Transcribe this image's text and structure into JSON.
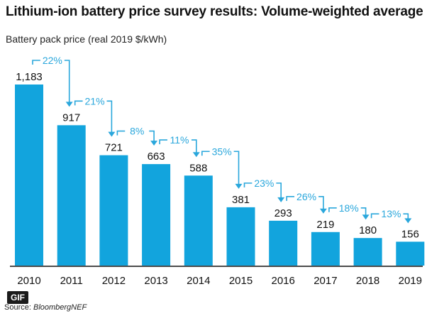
{
  "chart_data": {
    "type": "bar",
    "title": "Lithium-ion battery price survey results: Volume-weighted average",
    "ylabel": "Battery pack price (real 2019 $/kWh)",
    "xlabel": "",
    "categories": [
      "2010",
      "2011",
      "2012",
      "2013",
      "2014",
      "2015",
      "2016",
      "2017",
      "2018",
      "2019"
    ],
    "values": [
      1183,
      917,
      721,
      663,
      588,
      381,
      293,
      219,
      180,
      156
    ],
    "value_labels": [
      "1,183",
      "917",
      "721",
      "663",
      "588",
      "381",
      "293",
      "219",
      "180",
      "156"
    ],
    "changes": [
      "22%",
      "21%",
      "8%",
      "11%",
      "35%",
      "23%",
      "26%",
      "18%",
      "13%"
    ],
    "ylim": [
      0,
      1183
    ],
    "grid": false,
    "legend": "none",
    "colors": {
      "bar": "#12a4dd",
      "change_arrow": "#2aa7dc",
      "axis": "#111111"
    }
  },
  "badge": "GIF",
  "source": {
    "prefix": "Source:",
    "name": "BloombergNEF"
  }
}
